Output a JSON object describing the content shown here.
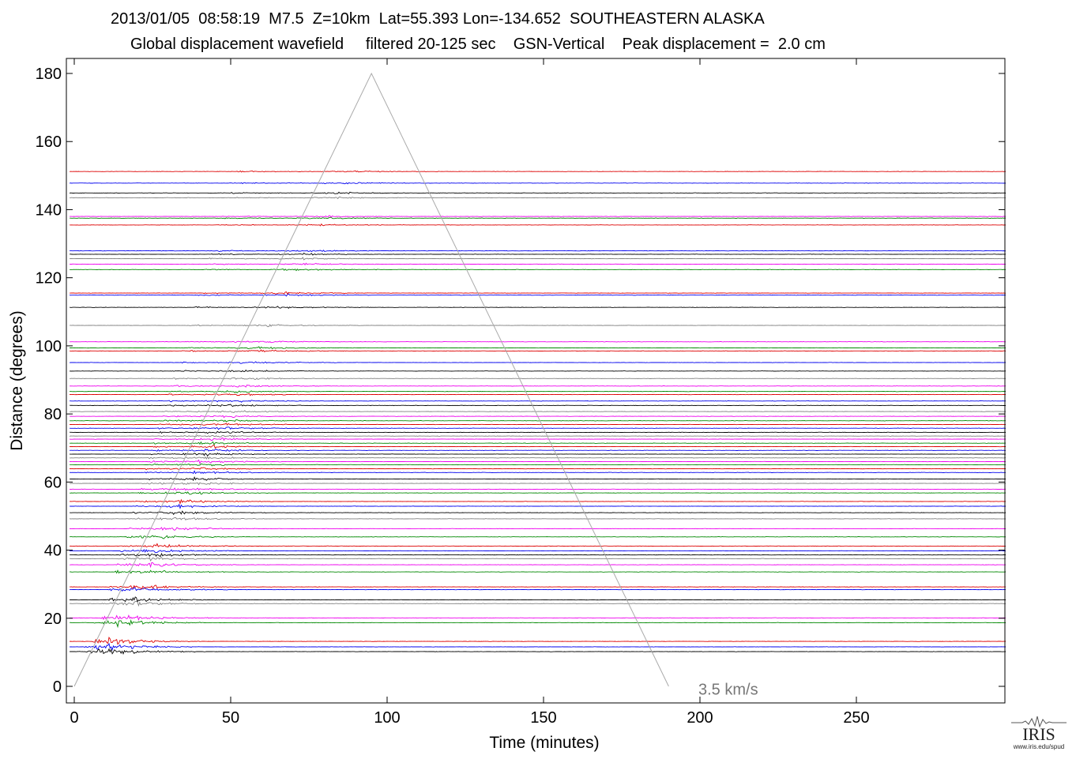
{
  "header": {
    "line1": "2013/01/05  08:58:19  M7.5  Z=10km  Lat=55.393 Lon=-134.652  SOUTHEASTERN ALASKA",
    "line2": "Global displacement wavefield     filtered 20-125 sec    GSN-Vertical    Peak displacement =  2.0 cm"
  },
  "chart_data": {
    "type": "line",
    "title": "2013/01/05  08:58:19  M7.5  Z=10km  Lat=55.393 Lon=-134.652  SOUTHEASTERN ALASKA",
    "subtitle": "Global displacement wavefield     filtered 20-125 sec    GSN-Vertical    Peak displacement =  2.0 cm",
    "xlabel": "Time (minutes)",
    "ylabel": "Distance (degrees)",
    "xlim": [
      -2,
      300
    ],
    "ylim": [
      -5,
      185
    ],
    "xticks": [
      0,
      50,
      100,
      150,
      200,
      250
    ],
    "yticks": [
      0,
      20,
      40,
      60,
      80,
      100,
      120,
      140,
      160,
      180
    ],
    "grid": false,
    "trace_colors": [
      "#000000",
      "#0000ee",
      "#dd0000",
      "#008800",
      "#ee00ee",
      "#808080"
    ],
    "trace_distances_deg": [
      10.2,
      11.6,
      13.2,
      18.7,
      20.1,
      24.3,
      25.4,
      28.4,
      29.2,
      33.6,
      35.7,
      37.5,
      38.6,
      39.8,
      41.2,
      43.9,
      46.3,
      49.2,
      51.0,
      52.9,
      54.3,
      56.8,
      57.9,
      59.6,
      60.9,
      62.8,
      63.9,
      65.1,
      66.0,
      67.1,
      68.2,
      69.3,
      70.4,
      71.4,
      72.6,
      73.5,
      74.6,
      75.8,
      76.9,
      78.0,
      79.3,
      80.7,
      82.5,
      83.8,
      85.7,
      86.6,
      88.2,
      90.4,
      92.6,
      95.1,
      98.5,
      99.4,
      101.2,
      106.0,
      111.3,
      114.9,
      115.5,
      122.4,
      124.0,
      125.6,
      126.9,
      127.9,
      135.5,
      137.5,
      138.0,
      143.5,
      144.9,
      147.8,
      151.2
    ],
    "velocity_line": {
      "label": "3.5 km/s",
      "points": [
        [
          0,
          0
        ],
        [
          95,
          180
        ],
        [
          190,
          0
        ]
      ]
    }
  },
  "logo": {
    "name": "IRIS",
    "url": "www.iris.edu/spud"
  }
}
